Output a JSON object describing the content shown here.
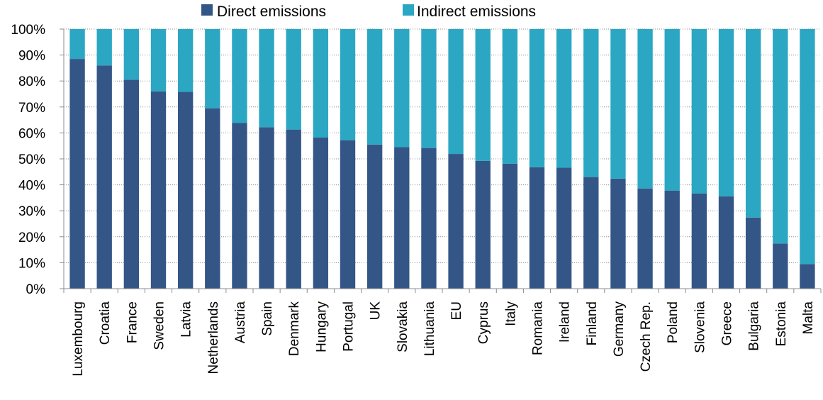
{
  "chart_data": {
    "type": "bar",
    "stacked": true,
    "categories": [
      "Luxembourg",
      "Croatia",
      "France",
      "Sweden",
      "Latvia",
      "Netherlands",
      "Austria",
      "Spain",
      "Denmark",
      "Hungary",
      "Portugal",
      "UK",
      "Slovakia",
      "Lithuania",
      "EU",
      "Cyprus",
      "Italy",
      "Romania",
      "Ireland",
      "Finland",
      "Germany",
      "Czech Rep.",
      "Poland",
      "Slovenia",
      "Greece",
      "Bulgaria",
      "Estonia",
      "Malta"
    ],
    "series": [
      {
        "name": "Direct emissions",
        "color": "#345687",
        "values": [
          88.5,
          86,
          80.5,
          76,
          75.8,
          69.5,
          63.8,
          62.2,
          61.3,
          58.2,
          57.2,
          55.5,
          54.5,
          54.2,
          51.9,
          49.2,
          48.1,
          46.8,
          46.6,
          43,
          42.4,
          38.6,
          37.8,
          36.7,
          35.6,
          27.4,
          17.4,
          9.5
        ]
      },
      {
        "name": "Indirect emissions",
        "color": "#2ba7c3",
        "values": [
          11.5,
          14,
          19.5,
          24,
          24.2,
          30.5,
          36.2,
          37.8,
          38.7,
          41.8,
          42.8,
          44.5,
          45.5,
          45.8,
          48.1,
          50.8,
          51.9,
          53.2,
          53.4,
          57,
          57.6,
          61.4,
          62.2,
          63.3,
          64.4,
          72.6,
          82.6,
          90.5
        ]
      }
    ],
    "yticks": [
      "0%",
      "10%",
      "20%",
      "30%",
      "40%",
      "50%",
      "60%",
      "70%",
      "80%",
      "90%",
      "100%"
    ],
    "ylim": [
      0,
      100
    ],
    "grid": true,
    "legend": "top-center",
    "title": "",
    "xlabel": "",
    "ylabel": ""
  }
}
